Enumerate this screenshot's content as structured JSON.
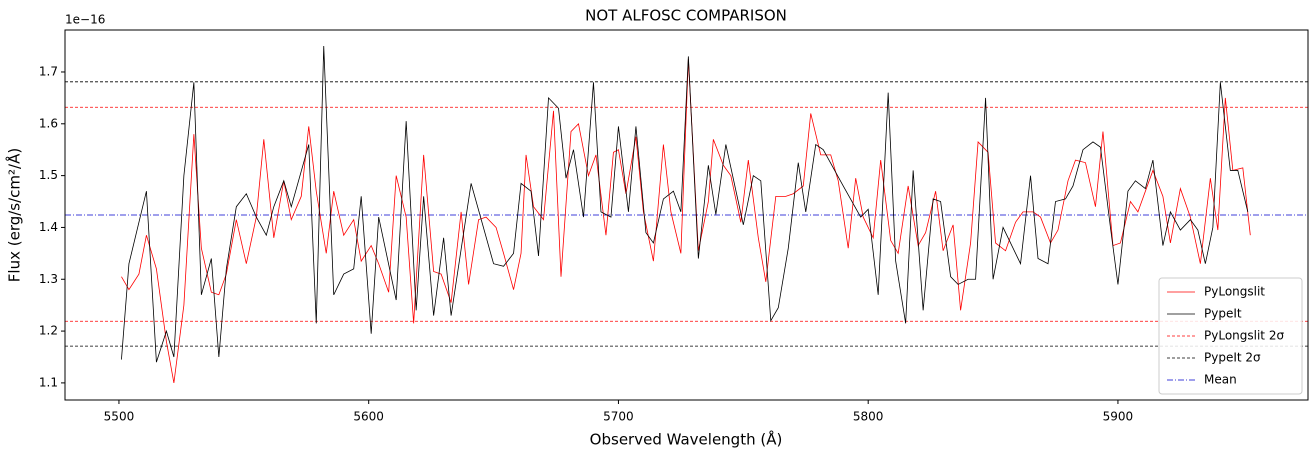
{
  "chart_data": {
    "type": "line",
    "title": "NOT ALFOSC COMPARISON",
    "xlabel": "Observed Wavelength (Å)",
    "ylabel": "Flux (erg/s/cm²/Å)",
    "offset_label": "1e−16",
    "xlim": [
      5478.4,
      5976.1
    ],
    "ylim": [
      1.067,
      1.781
    ],
    "xticks": [
      5500,
      5600,
      5700,
      5800,
      5900
    ],
    "yticks": [
      1.1,
      1.2,
      1.3,
      1.4,
      1.5,
      1.6,
      1.7
    ],
    "legend": "lower right",
    "series": [
      {
        "name": "PyLongslit",
        "color": "#ff0000",
        "x": [
          5501,
          5504,
          5508,
          5511,
          5515,
          5519,
          5522,
          5526,
          5530,
          5533,
          5537,
          5540,
          5543,
          5547,
          5551,
          5555,
          5558,
          5562,
          5566,
          5569,
          5573,
          5576,
          5579,
          5583,
          5586,
          5590,
          5594,
          5597,
          5601,
          5604,
          5608,
          5611,
          5615,
          5618,
          5622,
          5626,
          5629,
          5633,
          5637,
          5640,
          5644,
          5647,
          5651,
          5654,
          5658,
          5661,
          5663,
          5666,
          5670,
          5674,
          5677,
          5681,
          5684,
          5688,
          5691,
          5695,
          5698,
          5700,
          5703,
          5707,
          5710,
          5714,
          5718,
          5721,
          5725,
          5728,
          5732,
          5736,
          5738,
          5742,
          5745,
          5749,
          5752,
          5756,
          5759,
          5763,
          5767,
          5770,
          5774,
          5777,
          5781,
          5785,
          5788,
          5792,
          5795,
          5798,
          5802,
          5805,
          5809,
          5812,
          5816,
          5820,
          5823,
          5827,
          5830,
          5834,
          5837,
          5841,
          5844,
          5848,
          5851,
          5855,
          5859,
          5862,
          5866,
          5869,
          5873,
          5876,
          5880,
          5883,
          5887,
          5891,
          5894,
          5898,
          5901,
          5905,
          5908,
          5914,
          5918,
          5921,
          5925,
          5929,
          5933,
          5937,
          5940,
          5943,
          5946,
          5950,
          5953
        ],
        "values": [
          1.305,
          1.28,
          1.31,
          1.385,
          1.32,
          1.18,
          1.1,
          1.25,
          1.58,
          1.36,
          1.275,
          1.27,
          1.31,
          1.415,
          1.33,
          1.42,
          1.57,
          1.38,
          1.49,
          1.415,
          1.46,
          1.595,
          1.47,
          1.35,
          1.47,
          1.385,
          1.415,
          1.335,
          1.365,
          1.33,
          1.275,
          1.5,
          1.42,
          1.215,
          1.54,
          1.315,
          1.31,
          1.255,
          1.43,
          1.29,
          1.415,
          1.42,
          1.4,
          1.35,
          1.28,
          1.35,
          1.54,
          1.44,
          1.415,
          1.625,
          1.305,
          1.585,
          1.6,
          1.5,
          1.54,
          1.385,
          1.545,
          1.55,
          1.465,
          1.575,
          1.43,
          1.335,
          1.56,
          1.43,
          1.35,
          1.725,
          1.355,
          1.45,
          1.57,
          1.52,
          1.5,
          1.41,
          1.53,
          1.38,
          1.295,
          1.46,
          1.46,
          1.465,
          1.48,
          1.62,
          1.54,
          1.54,
          1.49,
          1.36,
          1.495,
          1.42,
          1.38,
          1.53,
          1.375,
          1.35,
          1.48,
          1.365,
          1.39,
          1.47,
          1.355,
          1.405,
          1.24,
          1.37,
          1.565,
          1.545,
          1.37,
          1.355,
          1.41,
          1.43,
          1.43,
          1.42,
          1.37,
          1.395,
          1.49,
          1.53,
          1.525,
          1.44,
          1.585,
          1.365,
          1.37,
          1.45,
          1.43,
          1.51,
          1.46,
          1.37,
          1.475,
          1.42,
          1.33,
          1.495,
          1.395,
          1.65,
          1.51,
          1.515,
          1.385
        ]
      },
      {
        "name": "PypeIt",
        "color": "#000000",
        "x": [
          5501,
          5504,
          5511,
          5515,
          5519,
          5522,
          5526,
          5530,
          5533,
          5537,
          5540,
          5543,
          5547,
          5551,
          5555,
          5559,
          5562,
          5566,
          5569,
          5576,
          5579,
          5582,
          5586,
          5590,
          5594,
          5597,
          5601,
          5604,
          5611,
          5615,
          5619,
          5622,
          5626,
          5630,
          5633,
          5641,
          5650,
          5654,
          5658,
          5661,
          5665,
          5668,
          5672,
          5676,
          5679,
          5682,
          5686,
          5690,
          5693,
          5697,
          5700,
          5704,
          5707,
          5711,
          5714,
          5718,
          5722,
          5725,
          5728,
          5732,
          5736,
          5739,
          5743,
          5750,
          5754,
          5757,
          5761,
          5764,
          5768,
          5772,
          5775,
          5779,
          5782,
          5790,
          5797,
          5800,
          5804,
          5808,
          5811,
          5815,
          5818,
          5822,
          5826,
          5829,
          5833,
          5836,
          5840,
          5843,
          5847,
          5850,
          5854,
          5861,
          5865,
          5868,
          5872,
          5875,
          5879,
          5882,
          5886,
          5890,
          5893,
          5897,
          5900,
          5904,
          5907,
          5911,
          5914,
          5918,
          5921,
          5925,
          5929,
          5932,
          5935,
          5938,
          5941,
          5945,
          5948,
          5952
        ],
        "values": [
          1.145,
          1.33,
          1.47,
          1.14,
          1.2,
          1.15,
          1.5,
          1.68,
          1.27,
          1.34,
          1.15,
          1.32,
          1.44,
          1.465,
          1.42,
          1.385,
          1.44,
          1.49,
          1.44,
          1.56,
          1.215,
          1.75,
          1.27,
          1.31,
          1.32,
          1.46,
          1.195,
          1.42,
          1.26,
          1.605,
          1.24,
          1.46,
          1.23,
          1.38,
          1.23,
          1.485,
          1.33,
          1.325,
          1.35,
          1.485,
          1.47,
          1.345,
          1.65,
          1.63,
          1.495,
          1.55,
          1.42,
          1.68,
          1.43,
          1.42,
          1.595,
          1.43,
          1.595,
          1.39,
          1.37,
          1.455,
          1.47,
          1.43,
          1.73,
          1.34,
          1.52,
          1.425,
          1.56,
          1.405,
          1.5,
          1.49,
          1.22,
          1.245,
          1.36,
          1.525,
          1.43,
          1.56,
          1.55,
          1.48,
          1.42,
          1.435,
          1.27,
          1.66,
          1.335,
          1.215,
          1.51,
          1.24,
          1.455,
          1.45,
          1.305,
          1.29,
          1.3,
          1.3,
          1.65,
          1.3,
          1.4,
          1.33,
          1.5,
          1.34,
          1.33,
          1.45,
          1.455,
          1.48,
          1.55,
          1.565,
          1.555,
          1.4,
          1.29,
          1.47,
          1.49,
          1.475,
          1.53,
          1.365,
          1.43,
          1.395,
          1.415,
          1.395,
          1.33,
          1.4,
          1.68,
          1.51,
          1.51,
          1.43
        ]
      }
    ],
    "hlines": [
      {
        "name": "PyLongslit 2σ",
        "color": "#ff0000",
        "style": "dashed",
        "values": [
          1.632,
          1.219
        ]
      },
      {
        "name": "PypeIt 2σ",
        "color": "#000000",
        "style": "dashed",
        "values": [
          1.681,
          1.171
        ]
      },
      {
        "name": "Mean",
        "color": "#0000cc",
        "style": "dashdot",
        "values": [
          1.424
        ]
      }
    ]
  }
}
